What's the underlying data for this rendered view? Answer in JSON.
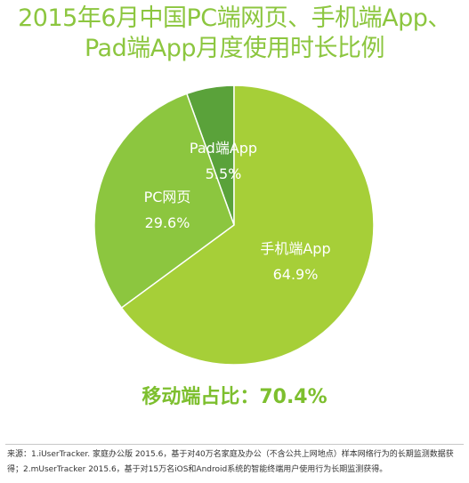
{
  "title": {
    "line1": "2015年6月中国PC端网页、手机端App、",
    "line2": "Pad端App月度使用时长比例"
  },
  "chart_data": {
    "type": "pie",
    "title": "2015年6月中国PC端网页、手机端App、Pad端App月度使用时长比例",
    "slices": [
      {
        "label": "Pad端App",
        "value": 5.5,
        "display": "5.5%",
        "color": "#5aa23a"
      },
      {
        "label": "PC网页",
        "value": 29.6,
        "display": "29.6%",
        "color": "#8cc63f"
      },
      {
        "label": "手机端App",
        "value": 64.9,
        "display": "64.9%",
        "color": "#a6cf38"
      }
    ]
  },
  "summary": "移动端占比：70.4%",
  "source": {
    "line1": "来源：1.iUserTracker. 家庭办公版 2015.6，基于对40万名家庭及办公（不含公共上网地点）样本网络行为的长期监测数据获",
    "line2": "得；2.mUserTracker 2015.6，基于对15万名iOS和Android系统的智能终端用户使用行为长期监测获得。"
  }
}
